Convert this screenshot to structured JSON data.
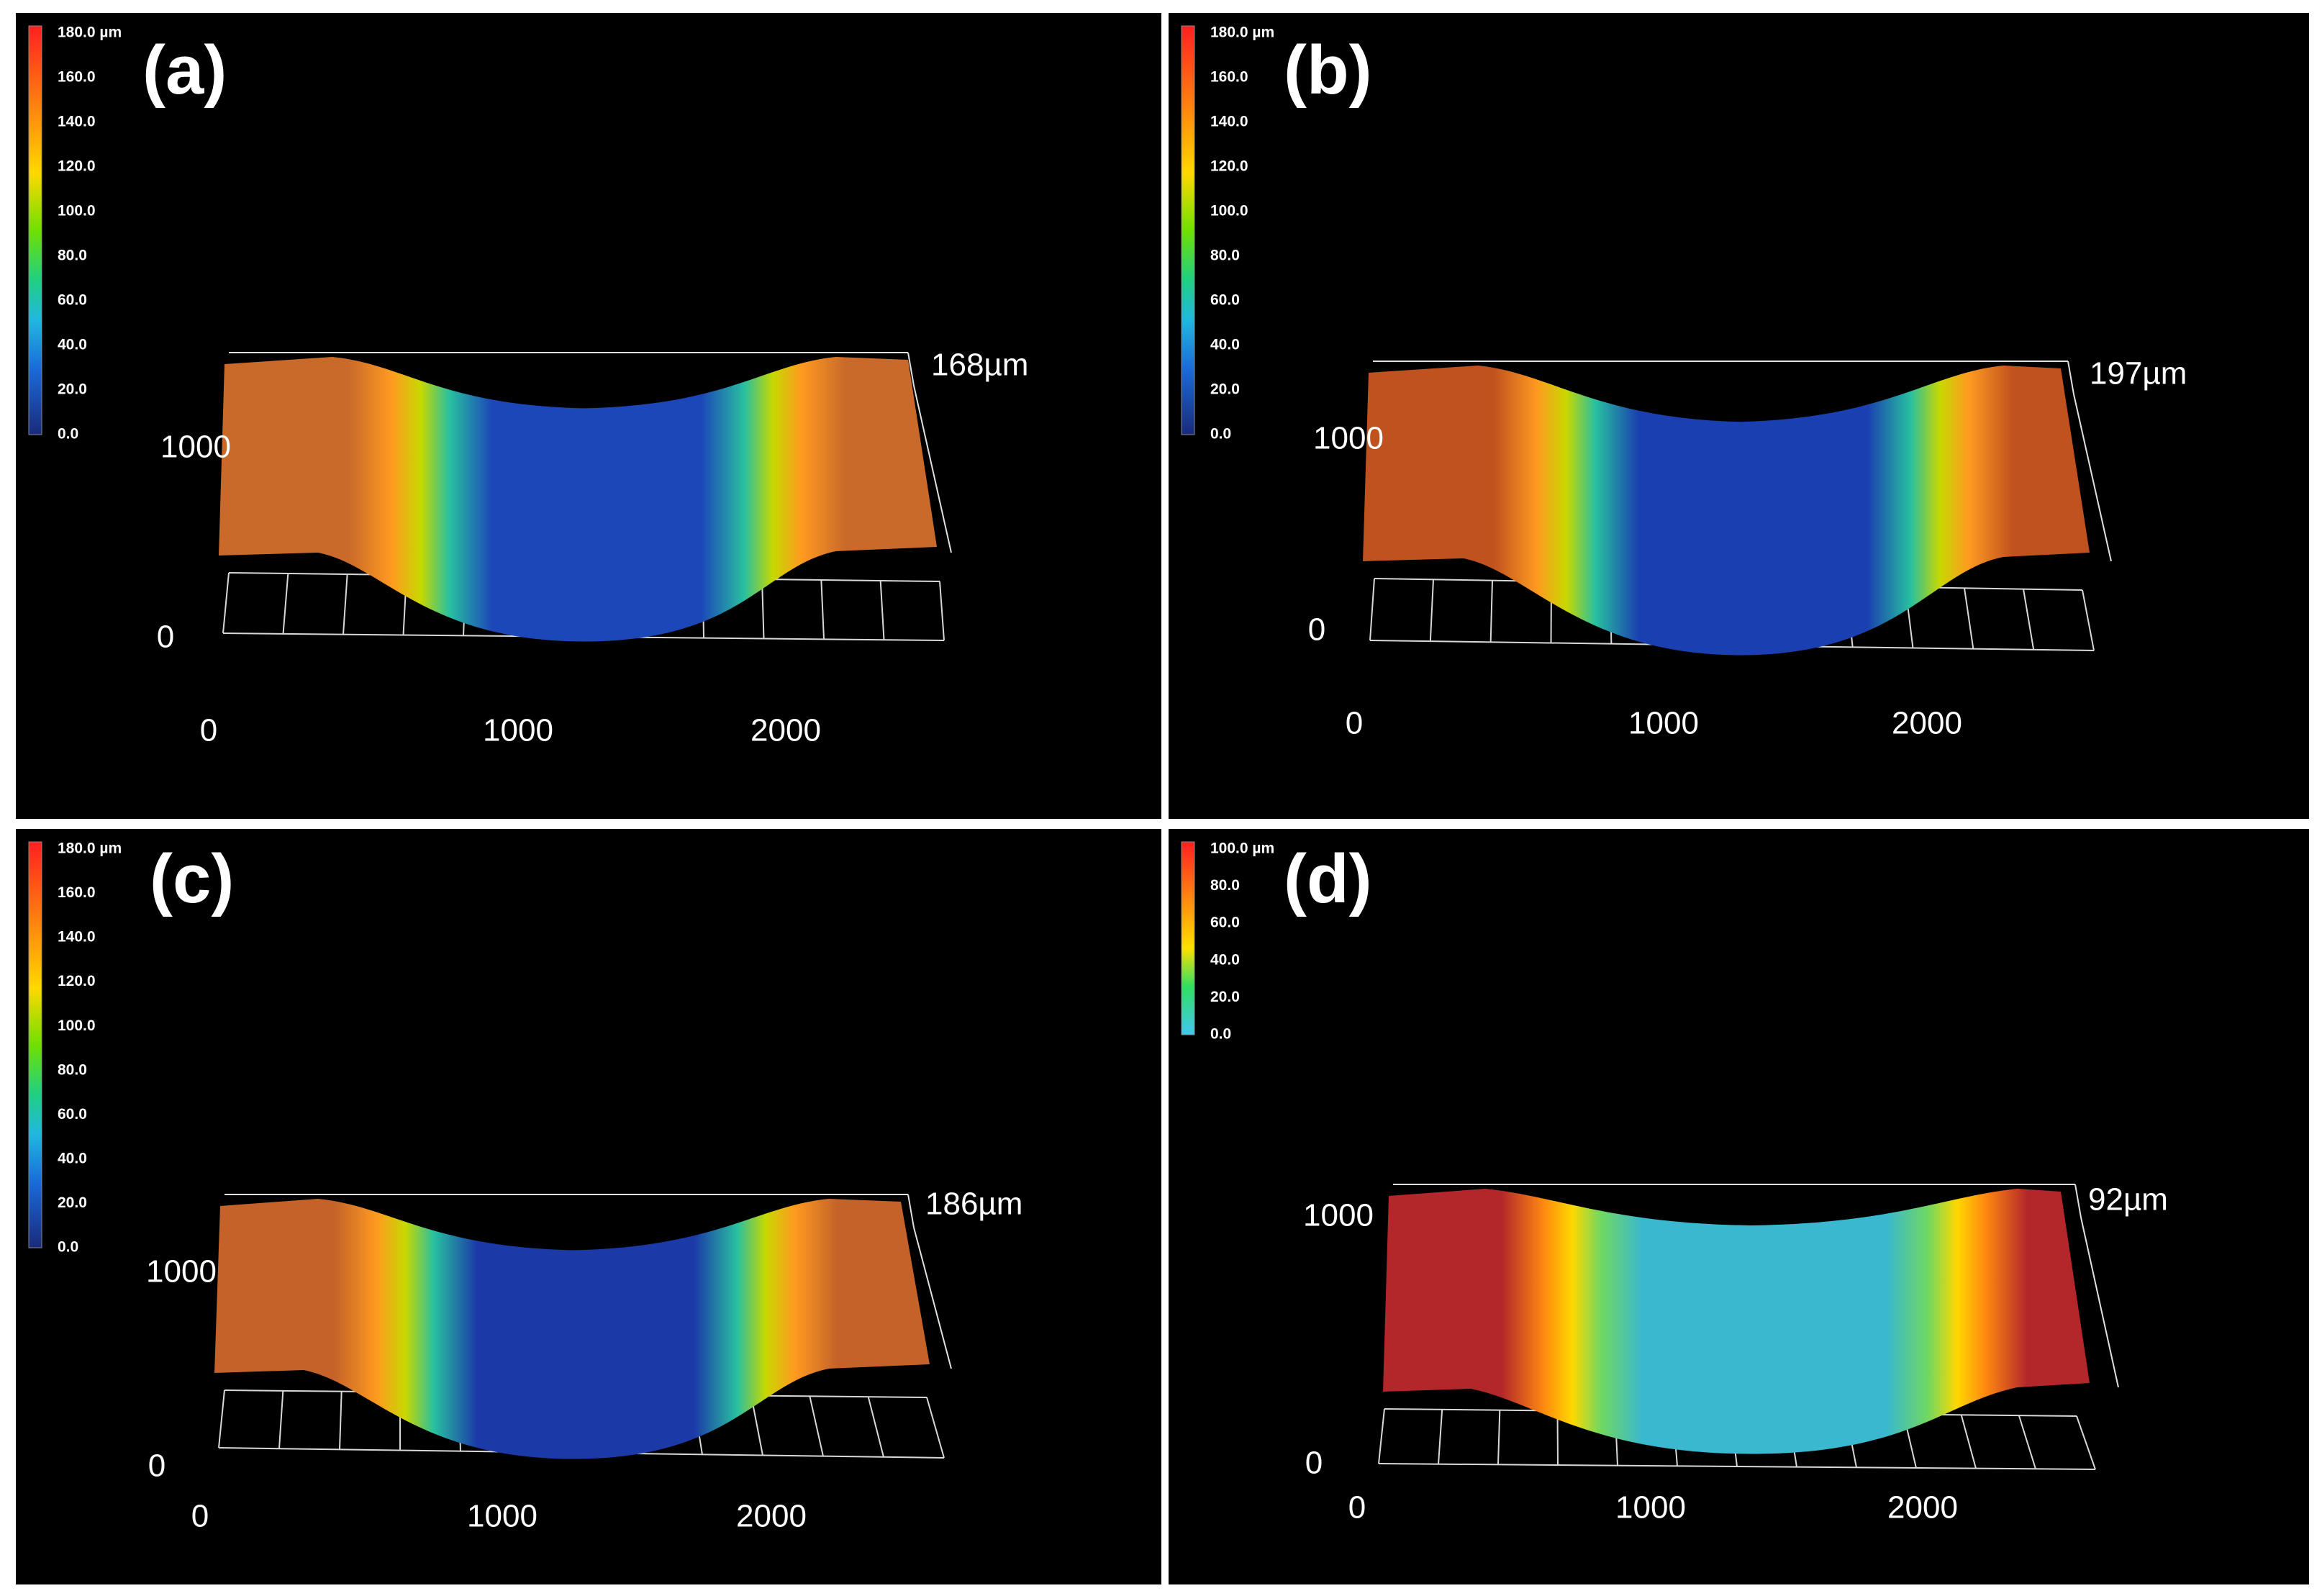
{
  "figure": {
    "panels": [
      {
        "id": "a",
        "label": "(a)",
        "colorbar": [
          "180.0 µm",
          "160.0",
          "140.0",
          "120.0",
          "100.0",
          "80.0",
          "60.0",
          "40.0",
          "20.0",
          "0.0"
        ],
        "z_annotation": "168µm",
        "y_ticks": [
          "1000",
          "0"
        ],
        "x_ticks": [
          "0",
          "1000",
          "2000"
        ],
        "palette": {
          "plateau": "#c96a2a",
          "valley": "#1c47b8"
        }
      },
      {
        "id": "b",
        "label": "(b)",
        "colorbar": [
          "180.0 µm",
          "160.0",
          "140.0",
          "120.0",
          "100.0",
          "80.0",
          "60.0",
          "40.0",
          "20.0",
          "0.0"
        ],
        "z_annotation": "197µm",
        "y_ticks": [
          "1000",
          "0"
        ],
        "x_ticks": [
          "0",
          "1000",
          "2000"
        ],
        "palette": {
          "plateau": "#c0521f",
          "valley": "#1a3fb0"
        }
      },
      {
        "id": "c",
        "label": "(c)",
        "colorbar": [
          "180.0 µm",
          "160.0",
          "140.0",
          "120.0",
          "100.0",
          "80.0",
          "60.0",
          "40.0",
          "20.0",
          "0.0"
        ],
        "z_annotation": "186µm",
        "y_ticks": [
          "1000",
          "0"
        ],
        "x_ticks": [
          "0",
          "1000",
          "2000"
        ],
        "palette": {
          "plateau": "#c4622a",
          "valley": "#1b3aa8"
        }
      },
      {
        "id": "d",
        "label": "(d)",
        "colorbar": [
          "100.0 µm",
          "80.0",
          "60.0",
          "40.0",
          "20.0",
          "0.0"
        ],
        "z_annotation": "92µm",
        "y_ticks": [
          "1000",
          "0"
        ],
        "x_ticks": [
          "0",
          "1000",
          "2000"
        ],
        "palette": {
          "plateau": "#b3272a",
          "valley": "#39b8cf"
        }
      }
    ]
  }
}
